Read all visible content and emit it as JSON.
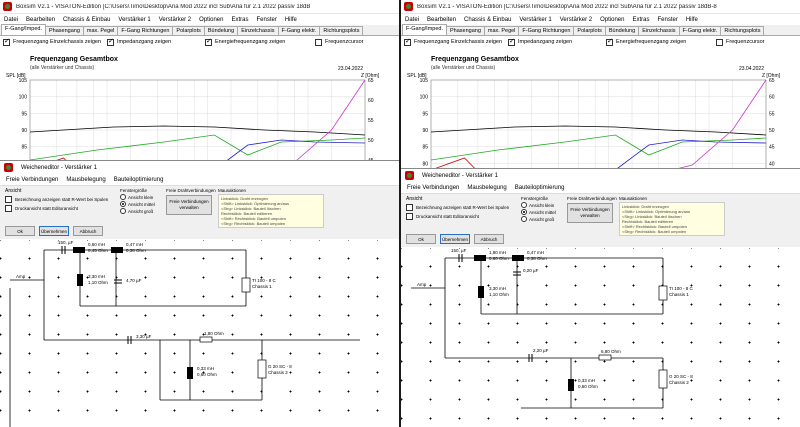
{
  "left": {
    "window_title": "Boxsim V2.1 - VISATON-Edition [C:\\Users\\Timo\\Desktop\\Aria Mod 2022 incl Sub\\Aria für 2.1 2022 passiv 18dB",
    "menu": [
      "Datei",
      "Bearbeiten",
      "Chassis & Einbau",
      "Verstärker 1",
      "Verstärker 2",
      "Optionen",
      "Extras",
      "Fenster",
      "Hilfe"
    ],
    "tabs": [
      "F-Gang/Imped.",
      "Phasengang",
      "max. Pegel",
      "F-Gang Richtungen",
      "Polarplots",
      "Bündelung",
      "Einzelchassis",
      "F-Gang elektr.",
      "Richtungsplots"
    ],
    "checks": [
      {
        "label": "Frequenzgang Einzelchassis zeigen",
        "checked": true
      },
      {
        "label": "Impedanzgang zeigen",
        "checked": true
      },
      {
        "label": "Energiefrequenzgang zeigen",
        "checked": true
      },
      {
        "label": "Frequenzcursor",
        "checked": false
      }
    ],
    "chart": {
      "title": "Frequenzgang Gesamtbox",
      "subtitle": "(alle Verstärker und Chassis)",
      "date": "23.04.2022",
      "spl_label": "SPL [dB]",
      "z_label": "Z [Ohm]"
    },
    "editor": {
      "title": "Weicheneditor - Verstärker 1",
      "menu": [
        "Freie Verbindungen",
        "Mausbelegung",
        "Bauteiloptimierung"
      ],
      "ansicht_title": "Ansicht",
      "ansicht_checks": [
        {
          "label": "Bezeichnung anzeigen statt R-Wert bei Spulen",
          "checked": false
        },
        {
          "label": "Druckansicht statt Editoransicht",
          "checked": false
        }
      ],
      "fenster_title": "Fenstergröße",
      "fenster_options": [
        {
          "label": "Ansicht klein",
          "on": false
        },
        {
          "label": "Ansicht mittel",
          "on": true
        },
        {
          "label": "Ansicht groß",
          "on": false
        }
      ],
      "draht_title": "Freie Drahtverbindungen",
      "draht_button": "Freie Verbindungen verwalten",
      "maus_title": "Mausaktionen",
      "maus_hints": [
        "Linksklick: Draht erzeugen",
        "<Shift> Linksklick: Optimierung an/aus",
        "<Strg> Linksklick: Bauteil löschen",
        "Rechtsklick: Bauteil editieren",
        "<Shift> Rechtsklick: Bauteil umpolen",
        "<Strg> Rechtsklick: Bauteil umpolen"
      ],
      "buttons": [
        "Ok",
        "Übernehmen",
        "Abbruch"
      ]
    },
    "components": {
      "c1": "150, µF",
      "l1a": "0,60 mH",
      "l1b": "0,45 Ohm",
      "l2a": "0,47 mH",
      "l2b": "0,38 Ohm",
      "l3a": "3,30 mH",
      "l3b": "1,10 Ohm",
      "c3": "4,70 µF",
      "amp": "Amp",
      "tw1a": "TI 100 - 8 C",
      "tw1b": "Chassis 1",
      "c4": "3,30 µF",
      "r1": "1,80 Ohm",
      "l4a": "0,33 mH",
      "l4b": "0,60 Ohm",
      "tw2a": "G 20 SC - 8",
      "tw2b": "Chassis 2"
    }
  },
  "right": {
    "window_title": "Boxsim V2.1 - VISATON-Edition [C:\\Users\\Timo\\Desktop\\Aria Mod 2022 incl Sub\\Aria für 2.1 2022 passiv 18dB-8",
    "menu": [
      "Datei",
      "Bearbeiten",
      "Chassis & Einbau",
      "Verstärker 1",
      "Verstärker 2",
      "Optionen",
      "Extras",
      "Fenster",
      "Hilfe"
    ],
    "tabs": [
      "F-Gang/Imped.",
      "Phasengang",
      "max. Pegel",
      "F-Gang Richtungen",
      "Polarplots",
      "Bündelung",
      "Einzelchassis",
      "F-Gang elektr.",
      "Richtungsplots"
    ],
    "checks": [
      {
        "label": "Frequenzgang Einzelchassis zeigen",
        "checked": true
      },
      {
        "label": "Impedanzgang zeigen",
        "checked": true
      },
      {
        "label": "Energiefrequenzgang zeigen",
        "checked": true
      },
      {
        "label": "Frequenzcursor",
        "checked": false
      }
    ],
    "chart": {
      "title": "Frequenzgang Gesamtbox",
      "subtitle": "(alle Verstärker und Chassis)",
      "date": "23.04.2022",
      "spl_label": "SPL [dB]",
      "z_label": "Z [Ohm]"
    },
    "editor": {
      "title": "Weicheneditor - Verstärker 1",
      "menu": [
        "Freie Verbindungen",
        "Mausbelegung",
        "Bauteiloptimierung"
      ],
      "ansicht_title": "Ansicht",
      "ansicht_checks": [
        {
          "label": "Bezeichnung anzeigen statt R-Wert bei Spulen",
          "checked": false
        },
        {
          "label": "Druckansicht statt Editoransicht",
          "checked": false
        }
      ],
      "fenster_title": "Fenstergröße",
      "fenster_options": [
        {
          "label": "Ansicht klein",
          "on": false
        },
        {
          "label": "Ansicht mittel",
          "on": true
        },
        {
          "label": "Ansicht groß",
          "on": false
        }
      ],
      "draht_title": "Freie Drahtverbindungen",
      "draht_button": "Freie Verbindungen verwalten",
      "maus_title": "Mausaktionen",
      "maus_hints": [
        "Linksklick: Draht erzeugen",
        "<Shift> Linksklick: Optimierung an/aus",
        "<Strg> Linksklick: Bauteil löschen",
        "Rechtsklick: Bauteil editieren",
        "<Shift> Rechtsklick: Bauteil umpolen",
        "<Strg> Rechtsklick: Bauteil umpolen"
      ],
      "buttons": [
        "Ok",
        "Übernehmen",
        "Abbruch"
      ]
    },
    "components": {
      "c1": "150, µF",
      "l1a": "1,80 mH",
      "l1b": "0,60 Ohm",
      "l2a": "0,47 mH",
      "l2b": "0,38 Ohm",
      "c2": "0,20 µF",
      "l3a": "3,30 mH",
      "l3b": "1,10 Ohm",
      "amp": "Amp",
      "tw1a": "TI 100 - 8 C",
      "tw1b": "Chassis 1",
      "c4": "2,20 µF",
      "r1": "6,80 Ohm",
      "l4a": "0,33 mH",
      "l4b": "0,60 Ohm",
      "tw2a": "G 20 SC - 8",
      "tw2b": "Chassis 2"
    }
  },
  "chart_data": [
    {
      "type": "line",
      "title": "Frequenzgang Gesamtbox",
      "subtitle": "(alle Verstärker und Chassis)",
      "ylabel": "SPL [dB]",
      "y2label": "Z [Ohm]",
      "yticks": [
        105,
        100,
        95,
        90,
        85,
        80,
        75
      ],
      "y2ticks": [
        65,
        60,
        55,
        50,
        45,
        40
      ],
      "ylim": [
        75,
        105
      ],
      "y2lim": [
        40,
        65
      ],
      "grid": true
    },
    {
      "type": "line",
      "title": "Frequenzgang Gesamtbox",
      "subtitle": "(alle Verstärker und Chassis)",
      "ylabel": "SPL [dB]",
      "y2label": "Z [Ohm]",
      "yticks": [
        105,
        100,
        95,
        90,
        85,
        80,
        75
      ],
      "y2ticks": [
        65,
        60,
        55,
        50,
        45,
        40,
        35
      ],
      "ylim": [
        75,
        105
      ],
      "y2lim": [
        35,
        65
      ],
      "grid": true
    }
  ]
}
